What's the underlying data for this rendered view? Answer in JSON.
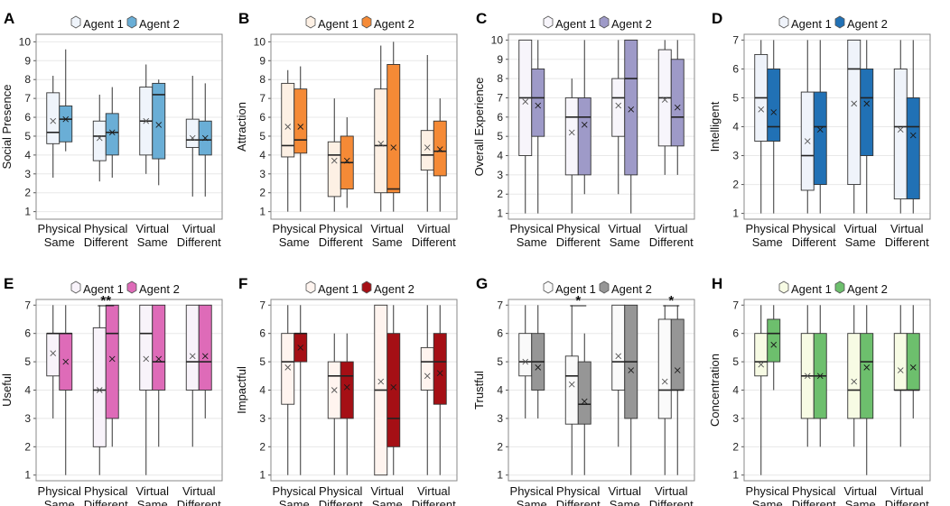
{
  "figure": {
    "legend_labels": [
      "Agent 1",
      "Agent 2"
    ]
  },
  "chart_data": [
    {
      "type": "box",
      "panel": "A",
      "ylabel": "Social Presence",
      "ylim": [
        0.6,
        10.4
      ],
      "yticks": [
        1,
        2,
        3,
        4,
        5,
        6,
        7,
        8,
        9,
        10
      ],
      "categories": [
        "Physical Same",
        "Physical Different",
        "Virtual Same",
        "Virtual Different"
      ],
      "colors": {
        "agent1": "#eff4fb",
        "agent2": "#6aaed6"
      },
      "series": [
        {
          "name": "Agent 1",
          "boxes": [
            {
              "min": 2.8,
              "q1": 4.6,
              "median": 5.2,
              "q3": 7.3,
              "max": 8.2,
              "mean": 5.8
            },
            {
              "min": 2.6,
              "q1": 3.7,
              "median": 5.0,
              "q3": 5.8,
              "max": 7.2,
              "mean": 4.9
            },
            {
              "min": 3.0,
              "q1": 4.0,
              "median": 5.8,
              "q3": 7.6,
              "max": 8.8,
              "mean": 5.8
            },
            {
              "min": 1.8,
              "q1": 4.4,
              "median": 4.8,
              "q3": 5.9,
              "max": 8.2,
              "mean": 4.9
            }
          ]
        },
        {
          "name": "Agent 2",
          "boxes": [
            {
              "min": 4.2,
              "q1": 4.7,
              "median": 5.9,
              "q3": 6.6,
              "max": 9.6,
              "mean": 5.9
            },
            {
              "min": 2.8,
              "q1": 4.0,
              "median": 5.2,
              "q3": 6.2,
              "max": 7.6,
              "mean": 5.2
            },
            {
              "min": 2.4,
              "q1": 3.8,
              "median": 7.2,
              "q3": 7.8,
              "max": 8.0,
              "mean": 5.6
            },
            {
              "min": 1.8,
              "q1": 4.0,
              "median": 4.8,
              "q3": 5.8,
              "max": 7.8,
              "mean": 4.9
            }
          ]
        }
      ],
      "significance": []
    },
    {
      "type": "box",
      "panel": "B",
      "ylabel": "Attraction",
      "ylim": [
        0.6,
        10.4
      ],
      "yticks": [
        1,
        2,
        3,
        4,
        5,
        6,
        7,
        8,
        9,
        10
      ],
      "categories": [
        "Physical Same",
        "Physical Different",
        "Virtual Same",
        "Virtual Different"
      ],
      "colors": {
        "agent1": "#fdf0e4",
        "agent2": "#f58a36"
      },
      "series": [
        {
          "name": "Agent 1",
          "boxes": [
            {
              "min": 1.0,
              "q1": 3.9,
              "median": 4.5,
              "q3": 7.8,
              "max": 8.5,
              "mean": 5.5
            },
            {
              "min": 1.0,
              "q1": 1.8,
              "median": 4.0,
              "q3": 4.7,
              "max": 7.0,
              "mean": 3.7
            },
            {
              "min": 1.0,
              "q1": 2.0,
              "median": 4.5,
              "q3": 7.5,
              "max": 9.8,
              "mean": 4.6
            },
            {
              "min": 1.0,
              "q1": 3.2,
              "median": 4.0,
              "q3": 5.3,
              "max": 9.3,
              "mean": 4.4
            }
          ]
        },
        {
          "name": "Agent 2",
          "boxes": [
            {
              "min": 1.0,
              "q1": 4.1,
              "median": 4.8,
              "q3": 7.5,
              "max": 8.7,
              "mean": 5.5
            },
            {
              "min": 1.2,
              "q1": 2.2,
              "median": 3.6,
              "q3": 5.0,
              "max": 6.0,
              "mean": 3.7
            },
            {
              "min": 1.0,
              "q1": 2.0,
              "median": 2.2,
              "q3": 8.8,
              "max": 10.0,
              "mean": 4.4
            },
            {
              "min": 1.0,
              "q1": 2.9,
              "median": 4.2,
              "q3": 5.8,
              "max": 7.0,
              "mean": 4.3
            }
          ]
        }
      ],
      "significance": []
    },
    {
      "type": "box",
      "panel": "C",
      "ylabel": "Overall Experience",
      "ylim": [
        0.7,
        10.3
      ],
      "yticks": [
        1,
        2,
        3,
        4,
        5,
        6,
        7,
        8,
        9,
        10
      ],
      "categories": [
        "Physical Same",
        "Physical Different",
        "Virtual Same",
        "Virtual Different"
      ],
      "colors": {
        "agent1": "#f7f5fb",
        "agent2": "#9e9ac8"
      },
      "series": [
        {
          "name": "Agent 1",
          "boxes": [
            {
              "min": 1.0,
              "q1": 4.0,
              "median": 7.0,
              "q3": 10.0,
              "max": 10.0,
              "mean": 6.8
            },
            {
              "min": 1.0,
              "q1": 3.0,
              "median": 6.0,
              "q3": 7.0,
              "max": 8.0,
              "mean": 5.2
            },
            {
              "min": 2.0,
              "q1": 5.0,
              "median": 7.0,
              "q3": 8.0,
              "max": 10.0,
              "mean": 6.6
            },
            {
              "min": 3.0,
              "q1": 4.5,
              "median": 7.0,
              "q3": 9.5,
              "max": 10.0,
              "mean": 6.9
            }
          ]
        },
        {
          "name": "Agent 2",
          "boxes": [
            {
              "min": 1.0,
              "q1": 5.0,
              "median": 7.0,
              "q3": 8.5,
              "max": 10.0,
              "mean": 6.6
            },
            {
              "min": 2.0,
              "q1": 3.0,
              "median": 6.0,
              "q3": 7.0,
              "max": 10.0,
              "mean": 5.6
            },
            {
              "min": 1.0,
              "q1": 3.0,
              "median": 8.0,
              "q3": 10.0,
              "max": 10.0,
              "mean": 6.4
            },
            {
              "min": 3.0,
              "q1": 4.5,
              "median": 6.0,
              "q3": 9.0,
              "max": 10.0,
              "mean": 6.5
            }
          ]
        }
      ],
      "significance": []
    },
    {
      "type": "box",
      "panel": "D",
      "ylabel": "Intelligent",
      "ylim": [
        0.8,
        7.2
      ],
      "yticks": [
        1,
        2,
        3,
        4,
        5,
        6,
        7
      ],
      "categories": [
        "Physical Same",
        "Physical Different",
        "Virtual Same",
        "Virtual Different"
      ],
      "colors": {
        "agent1": "#eff3fa",
        "agent2": "#2171b5"
      },
      "series": [
        {
          "name": "Agent 1",
          "boxes": [
            {
              "min": 1.0,
              "q1": 3.5,
              "median": 5.0,
              "q3": 6.5,
              "max": 7.0,
              "mean": 4.6
            },
            {
              "min": 1.0,
              "q1": 1.8,
              "median": 3.0,
              "q3": 5.2,
              "max": 7.0,
              "mean": 3.5
            },
            {
              "min": 1.0,
              "q1": 2.0,
              "median": 6.0,
              "q3": 7.0,
              "max": 7.0,
              "mean": 4.8
            },
            {
              "min": 1.0,
              "q1": 1.5,
              "median": 4.0,
              "q3": 6.0,
              "max": 7.0,
              "mean": 3.9
            }
          ]
        },
        {
          "name": "Agent 2",
          "boxes": [
            {
              "min": 1.0,
              "q1": 3.5,
              "median": 4.0,
              "q3": 6.0,
              "max": 7.0,
              "mean": 4.5
            },
            {
              "min": 1.0,
              "q1": 2.0,
              "median": 4.0,
              "q3": 5.2,
              "max": 7.0,
              "mean": 3.9
            },
            {
              "min": 1.0,
              "q1": 3.0,
              "median": 5.0,
              "q3": 6.0,
              "max": 7.0,
              "mean": 4.8
            },
            {
              "min": 1.0,
              "q1": 1.5,
              "median": 4.0,
              "q3": 5.0,
              "max": 7.0,
              "mean": 3.7
            }
          ]
        }
      ],
      "significance": []
    },
    {
      "type": "box",
      "panel": "E",
      "ylabel": "Useful",
      "ylim": [
        0.8,
        7.2
      ],
      "yticks": [
        1,
        2,
        3,
        4,
        5,
        6,
        7
      ],
      "categories": [
        "Physical Same",
        "Physical Different",
        "Virtual Same",
        "Virtual Different"
      ],
      "colors": {
        "agent1": "#f8f3fa",
        "agent2": "#de6bb8"
      },
      "series": [
        {
          "name": "Agent 1",
          "boxes": [
            {
              "min": 3.0,
              "q1": 4.5,
              "median": 6.0,
              "q3": 6.0,
              "max": 7.0,
              "mean": 5.3
            },
            {
              "min": 1.0,
              "q1": 2.0,
              "median": 4.0,
              "q3": 6.2,
              "max": 7.0,
              "mean": 4.0
            },
            {
              "min": 1.0,
              "q1": 4.0,
              "median": 6.0,
              "q3": 7.0,
              "max": 7.0,
              "mean": 5.1
            },
            {
              "min": 2.0,
              "q1": 4.0,
              "median": 5.0,
              "q3": 7.0,
              "max": 7.0,
              "mean": 5.2
            }
          ]
        },
        {
          "name": "Agent 2",
          "boxes": [
            {
              "min": 1.0,
              "q1": 4.0,
              "median": 6.0,
              "q3": 6.0,
              "max": 7.0,
              "mean": 5.0
            },
            {
              "min": 2.0,
              "q1": 3.0,
              "median": 6.0,
              "q3": 7.0,
              "max": 7.0,
              "mean": 5.1
            },
            {
              "min": 2.0,
              "q1": 4.0,
              "median": 5.0,
              "q3": 7.0,
              "max": 7.0,
              "mean": 5.1
            },
            {
              "min": 3.0,
              "q1": 4.0,
              "median": 5.0,
              "q3": 7.0,
              "max": 7.0,
              "mean": 5.2
            }
          ]
        }
      ],
      "significance": [
        {
          "category": "Physical Different",
          "label": "**"
        }
      ]
    },
    {
      "type": "box",
      "panel": "F",
      "ylabel": "Impactful",
      "ylim": [
        0.8,
        7.2
      ],
      "yticks": [
        1,
        2,
        3,
        4,
        5,
        6,
        7
      ],
      "categories": [
        "Physical Same",
        "Physical Different",
        "Virtual Same",
        "Virtual Different"
      ],
      "colors": {
        "agent1": "#fff4ef",
        "agent2": "#a50f15"
      },
      "series": [
        {
          "name": "Agent 1",
          "boxes": [
            {
              "min": 1.0,
              "q1": 3.5,
              "median": 5.0,
              "q3": 6.0,
              "max": 7.0,
              "mean": 4.8
            },
            {
              "min": 1.0,
              "q1": 3.0,
              "median": 4.5,
              "q3": 5.0,
              "max": 6.0,
              "mean": 4.0
            },
            {
              "min": 1.0,
              "q1": 1.0,
              "median": 4.0,
              "q3": 7.0,
              "max": 7.0,
              "mean": 4.3
            },
            {
              "min": 1.0,
              "q1": 4.0,
              "median": 5.0,
              "q3": 5.5,
              "max": 7.0,
              "mean": 4.5
            }
          ]
        },
        {
          "name": "Agent 2",
          "boxes": [
            {
              "min": 1.0,
              "q1": 5.0,
              "median": 6.0,
              "q3": 6.0,
              "max": 7.0,
              "mean": 5.5
            },
            {
              "min": 1.0,
              "q1": 3.0,
              "median": 4.5,
              "q3": 5.0,
              "max": 6.0,
              "mean": 4.1
            },
            {
              "min": 1.0,
              "q1": 2.0,
              "median": 3.0,
              "q3": 6.0,
              "max": 7.0,
              "mean": 4.1
            },
            {
              "min": 1.0,
              "q1": 3.5,
              "median": 5.0,
              "q3": 6.0,
              "max": 7.0,
              "mean": 4.6
            }
          ]
        }
      ],
      "significance": []
    },
    {
      "type": "box",
      "panel": "G",
      "ylabel": "Trustful",
      "ylim": [
        0.8,
        7.2
      ],
      "yticks": [
        1,
        2,
        3,
        4,
        5,
        6,
        7
      ],
      "categories": [
        "Physical Same",
        "Physical Different",
        "Virtual Same",
        "Virtual Different"
      ],
      "colors": {
        "agent1": "#fafafa",
        "agent2": "#969696"
      },
      "series": [
        {
          "name": "Agent 1",
          "boxes": [
            {
              "min": 3.0,
              "q1": 4.5,
              "median": 5.0,
              "q3": 6.0,
              "max": 7.0,
              "mean": 5.0
            },
            {
              "min": 1.0,
              "q1": 2.8,
              "median": 4.5,
              "q3": 5.2,
              "max": 7.0,
              "mean": 4.2
            },
            {
              "min": 2.0,
              "q1": 4.0,
              "median": 5.0,
              "q3": 7.0,
              "max": 7.0,
              "mean": 5.2
            },
            {
              "min": 1.0,
              "q1": 3.0,
              "median": 4.0,
              "q3": 6.5,
              "max": 7.0,
              "mean": 4.3
            }
          ]
        },
        {
          "name": "Agent 2",
          "boxes": [
            {
              "min": 3.0,
              "q1": 4.0,
              "median": 5.0,
              "q3": 6.0,
              "max": 7.0,
              "mean": 4.8
            },
            {
              "min": 1.0,
              "q1": 2.8,
              "median": 3.5,
              "q3": 5.0,
              "max": 6.0,
              "mean": 3.6
            },
            {
              "min": 1.0,
              "q1": 3.0,
              "median": 5.0,
              "q3": 7.0,
              "max": 7.0,
              "mean": 4.7
            },
            {
              "min": 1.0,
              "q1": 4.0,
              "median": 4.0,
              "q3": 6.5,
              "max": 7.0,
              "mean": 4.7
            }
          ]
        }
      ],
      "significance": [
        {
          "category": "Physical Different",
          "label": "*"
        },
        {
          "category": "Virtual Different",
          "label": "*"
        }
      ]
    },
    {
      "type": "box",
      "panel": "H",
      "ylabel": "Concentration",
      "ylim": [
        0.8,
        7.2
      ],
      "yticks": [
        1,
        2,
        3,
        4,
        5,
        6,
        7
      ],
      "categories": [
        "Physical Same",
        "Physical Different",
        "Virtual Same",
        "Virtual Different"
      ],
      "colors": {
        "agent1": "#f7fbe4",
        "agent2": "#6dbf6d"
      },
      "series": [
        {
          "name": "Agent 1",
          "boxes": [
            {
              "min": 1.0,
              "q1": 4.5,
              "median": 5.0,
              "q3": 6.0,
              "max": 7.0,
              "mean": 4.9
            },
            {
              "min": 2.0,
              "q1": 3.0,
              "median": 4.5,
              "q3": 6.0,
              "max": 7.0,
              "mean": 4.5
            },
            {
              "min": 2.0,
              "q1": 3.0,
              "median": 4.0,
              "q3": 6.0,
              "max": 7.0,
              "mean": 4.3
            },
            {
              "min": 2.0,
              "q1": 4.0,
              "median": 4.0,
              "q3": 6.0,
              "max": 7.0,
              "mean": 4.7
            }
          ]
        },
        {
          "name": "Agent 2",
          "boxes": [
            {
              "min": 4.0,
              "q1": 5.0,
              "median": 6.0,
              "q3": 6.5,
              "max": 7.0,
              "mean": 5.6
            },
            {
              "min": 2.0,
              "q1": 3.0,
              "median": 4.5,
              "q3": 6.0,
              "max": 7.0,
              "mean": 4.5
            },
            {
              "min": 1.0,
              "q1": 3.0,
              "median": 5.0,
              "q3": 6.0,
              "max": 7.0,
              "mean": 4.8
            },
            {
              "min": 3.0,
              "q1": 4.0,
              "median": 4.0,
              "q3": 6.0,
              "max": 7.0,
              "mean": 4.8
            }
          ]
        }
      ],
      "significance": []
    }
  ]
}
